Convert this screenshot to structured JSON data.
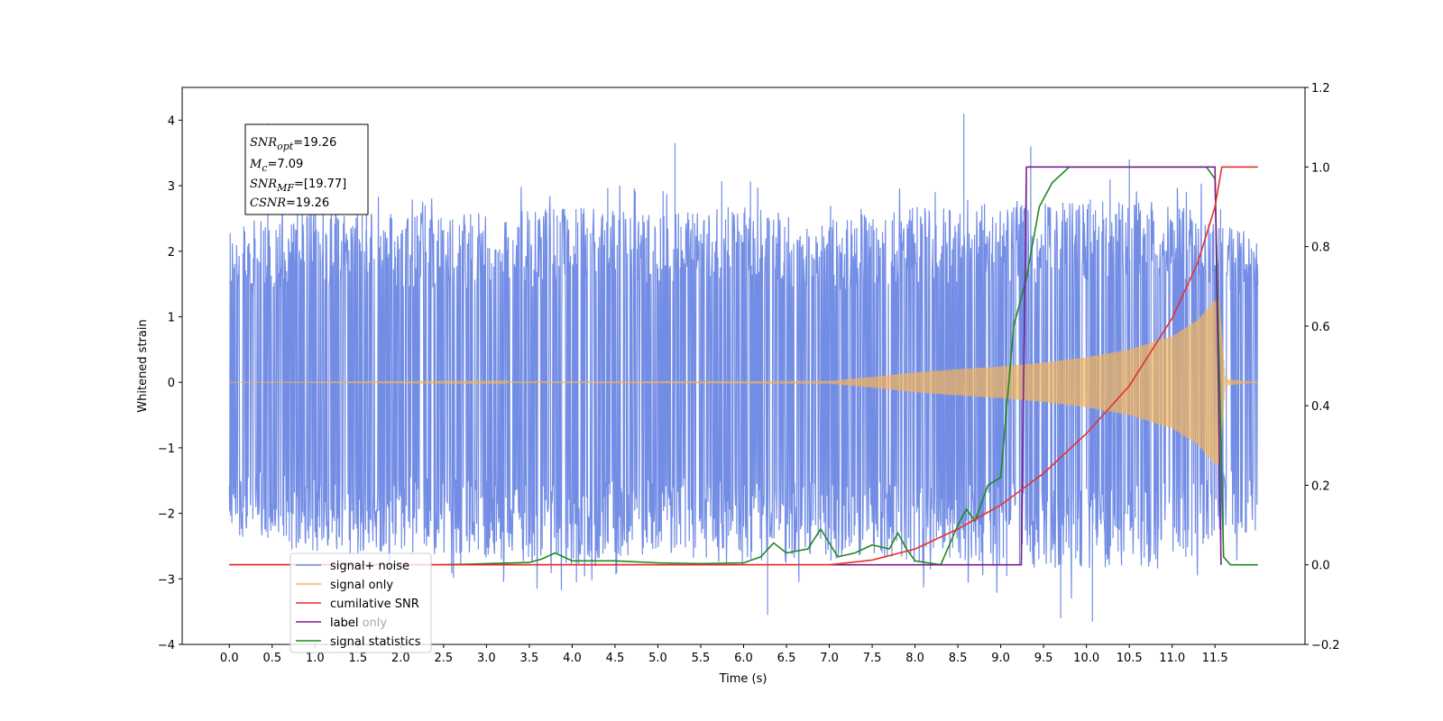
{
  "chart_data": {
    "type": "line",
    "xlabel": "Time (s)",
    "ylabel": "Whitened strain",
    "xlim": [
      -0.55,
      12.55
    ],
    "ylim_left": [
      -4,
      4.5
    ],
    "ylim_right": [
      -0.2,
      1.2
    ],
    "x_ticks": [
      0.0,
      0.5,
      1.0,
      1.5,
      2.0,
      2.5,
      3.0,
      3.5,
      4.0,
      4.5,
      5.0,
      5.5,
      6.0,
      6.5,
      7.0,
      7.5,
      8.0,
      8.5,
      9.0,
      9.5,
      10.0,
      10.5,
      11.0,
      11.5
    ],
    "x_tick_labels": [
      "0.0",
      "0.5",
      "1.0",
      "1.5",
      "2.0",
      "2.5",
      "3.0",
      "3.5",
      "4.0",
      "4.5",
      "5.0",
      "5.5",
      "6.0",
      "6.5",
      "7.0",
      "7.5",
      "8.0",
      "8.5",
      "9.0",
      "9.5",
      "10.0",
      "10.5",
      "11.0",
      "11.5"
    ],
    "y_left_ticks": [
      -4,
      -3,
      -2,
      -1,
      0,
      1,
      2,
      3,
      4
    ],
    "y_left_tick_labels": [
      "−4",
      "−3",
      "−2",
      "−1",
      "0",
      "1",
      "2",
      "3",
      "4"
    ],
    "y_right_ticks": [
      -0.2,
      0.0,
      0.2,
      0.4,
      0.6,
      0.8,
      1.0,
      1.2
    ],
    "y_right_tick_labels": [
      "−0.2",
      "0.0",
      "0.2",
      "0.4",
      "0.6",
      "0.8",
      "1.0",
      "1.2"
    ],
    "grid": false,
    "legend_position": "lower-left",
    "annotation": {
      "snr_opt": "=19.26",
      "mc": "=7.09",
      "snr_mf": "=[19.77]",
      "csnr": "=19.26"
    },
    "series": [
      {
        "name": "signal+ noise",
        "color": "#6b87e4",
        "axis": "left",
        "description": "whitened noisy strain, roughly ±2.5 with spikes up to 4.1",
        "envelope_points": [
          [
            0.0,
            2.4,
            -2.3
          ],
          [
            1.0,
            2.7,
            -2.7
          ],
          [
            2.0,
            2.6,
            -2.6
          ],
          [
            3.0,
            2.6,
            -2.7
          ],
          [
            4.0,
            2.7,
            -2.8
          ],
          [
            5.0,
            2.6,
            -2.6
          ],
          [
            6.0,
            2.7,
            -2.8
          ],
          [
            7.0,
            2.5,
            -2.7
          ],
          [
            8.0,
            2.7,
            -2.8
          ],
          [
            9.0,
            2.7,
            -2.8
          ],
          [
            10.0,
            2.8,
            -2.9
          ],
          [
            11.0,
            2.8,
            -2.8
          ],
          [
            11.5,
            2.6,
            -2.5
          ],
          [
            12.0,
            2.2,
            -2.3
          ]
        ],
        "spikes": [
          [
            0.45,
            3.95
          ],
          [
            1.6,
            3.2
          ],
          [
            5.2,
            3.65
          ],
          [
            8.57,
            4.1
          ],
          [
            9.35,
            3.6
          ],
          [
            10.5,
            3.4
          ],
          [
            6.28,
            -3.55
          ],
          [
            9.7,
            -3.6
          ],
          [
            10.07,
            -3.65
          ],
          [
            4.05,
            -3.05
          ]
        ]
      },
      {
        "name": "signal only",
        "color": "#f4b45a",
        "axis": "left",
        "description": "chirp signal amplitude envelope, grows toward merger at ~11.55 s",
        "envelope": [
          [
            0.0,
            0.0
          ],
          [
            7.0,
            0.02
          ],
          [
            7.5,
            0.08
          ],
          [
            8.0,
            0.15
          ],
          [
            8.5,
            0.2
          ],
          [
            9.0,
            0.24
          ],
          [
            9.5,
            0.3
          ],
          [
            10.0,
            0.38
          ],
          [
            10.5,
            0.5
          ],
          [
            11.0,
            0.7
          ],
          [
            11.3,
            0.95
          ],
          [
            11.5,
            1.25
          ],
          [
            11.55,
            1.25
          ],
          [
            11.62,
            0.05
          ],
          [
            12.0,
            0.0
          ]
        ]
      },
      {
        "name": "cumilative SNR",
        "color": "#e8302c",
        "axis": "right",
        "points": [
          [
            0.0,
            0.0
          ],
          [
            7.0,
            0.0
          ],
          [
            7.5,
            0.012
          ],
          [
            8.0,
            0.04
          ],
          [
            8.5,
            0.09
          ],
          [
            9.0,
            0.15
          ],
          [
            9.5,
            0.23
          ],
          [
            10.0,
            0.33
          ],
          [
            10.5,
            0.45
          ],
          [
            11.0,
            0.62
          ],
          [
            11.3,
            0.76
          ],
          [
            11.5,
            0.9
          ],
          [
            11.58,
            1.0
          ],
          [
            12.0,
            1.0
          ]
        ]
      },
      {
        "name": "label",
        "color": "#7b1e8e",
        "axis": "right",
        "points": [
          [
            0.0,
            0.0
          ],
          [
            9.24,
            0.0
          ],
          [
            9.3,
            1.0
          ],
          [
            11.5,
            1.0
          ],
          [
            11.57,
            0.0
          ]
        ]
      },
      {
        "name": "label only",
        "color": "#000000",
        "axis": "right",
        "points": []
      },
      {
        "name": "signal statistics",
        "color": "#1e8a1e",
        "axis": "right",
        "points": [
          [
            0.0,
            0.0
          ],
          [
            2.5,
            0.0
          ],
          [
            3.0,
            0.003
          ],
          [
            3.5,
            0.006
          ],
          [
            3.65,
            0.015
          ],
          [
            3.8,
            0.03
          ],
          [
            4.0,
            0.01
          ],
          [
            4.5,
            0.01
          ],
          [
            5.0,
            0.005
          ],
          [
            5.5,
            0.003
          ],
          [
            6.0,
            0.005
          ],
          [
            6.2,
            0.02
          ],
          [
            6.35,
            0.055
          ],
          [
            6.5,
            0.03
          ],
          [
            6.75,
            0.04
          ],
          [
            6.9,
            0.09
          ],
          [
            7.1,
            0.02
          ],
          [
            7.3,
            0.03
          ],
          [
            7.5,
            0.05
          ],
          [
            7.7,
            0.04
          ],
          [
            7.8,
            0.08
          ],
          [
            7.9,
            0.04
          ],
          [
            8.0,
            0.01
          ],
          [
            8.3,
            0.0
          ],
          [
            8.5,
            0.1
          ],
          [
            8.6,
            0.14
          ],
          [
            8.7,
            0.11
          ],
          [
            8.85,
            0.2
          ],
          [
            9.0,
            0.22
          ],
          [
            9.15,
            0.6
          ],
          [
            9.3,
            0.72
          ],
          [
            9.45,
            0.9
          ],
          [
            9.6,
            0.96
          ],
          [
            9.8,
            1.0
          ],
          [
            11.4,
            1.0
          ],
          [
            11.5,
            0.97
          ],
          [
            11.6,
            0.02
          ],
          [
            11.68,
            0.0
          ],
          [
            12.0,
            0.0
          ]
        ]
      }
    ]
  }
}
